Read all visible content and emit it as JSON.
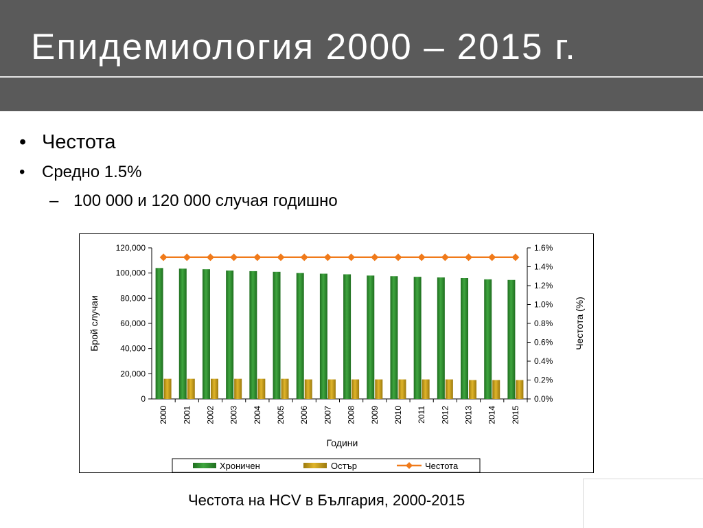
{
  "title": "Епидемиология 2000 – 2015 г.",
  "bullets": {
    "b1": {
      "marker": "•",
      "text": "Честота"
    },
    "b2": {
      "marker": "•",
      "text": "Средно 1.5%"
    },
    "b3": {
      "marker": "–",
      "text": "100 000 и 120 000 случая годишно"
    }
  },
  "caption": "Честота на HCV в България, 2000-2015",
  "colors": {
    "title_bg": "#5a5a5a",
    "chronic": "#2e8b2e",
    "acute": "#c9a01a",
    "rate": "#f07a1a"
  },
  "chart_data": {
    "type": "bar",
    "categories": [
      "2000",
      "2001",
      "2002",
      "2003",
      "2004",
      "2005",
      "2006",
      "2007",
      "2008",
      "2009",
      "2010",
      "2011",
      "2012",
      "2013",
      "2014",
      "2015"
    ],
    "series": [
      {
        "name": "Хроничен",
        "type": "bar",
        "axis": "left",
        "values": [
          104000,
          103500,
          103000,
          102000,
          101500,
          101000,
          100000,
          99500,
          99000,
          98000,
          97500,
          97000,
          96500,
          96000,
          95000,
          94500
        ]
      },
      {
        "name": "Остър",
        "type": "bar",
        "axis": "left",
        "values": [
          16000,
          16000,
          16000,
          16000,
          16000,
          16000,
          15500,
          15500,
          15500,
          15500,
          15500,
          15500,
          15500,
          15000,
          15000,
          15000
        ]
      },
      {
        "name": "Честота",
        "type": "line",
        "axis": "right",
        "values": [
          1.5,
          1.5,
          1.5,
          1.5,
          1.5,
          1.5,
          1.5,
          1.5,
          1.5,
          1.5,
          1.5,
          1.5,
          1.5,
          1.5,
          1.5,
          1.5
        ]
      }
    ],
    "xlabel": "Години",
    "ylabel": "Брой случаи",
    "y2label": "Честота (%)",
    "ylim": [
      0,
      120000
    ],
    "y2lim": [
      0,
      1.6
    ],
    "yticks": [
      "0",
      "20,000",
      "40,000",
      "60,000",
      "80,000",
      "100,000",
      "120,000"
    ],
    "y2ticks": [
      "0.0%",
      "0.2%",
      "0.4%",
      "0.6%",
      "0.8%",
      "1.0%",
      "1.2%",
      "1.4%",
      "1.6%"
    ],
    "grid": false,
    "legend": "bottom"
  }
}
